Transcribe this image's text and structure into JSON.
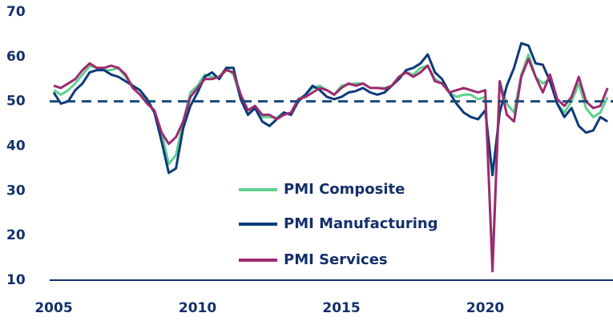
{
  "chart_data": {
    "type": "line",
    "x": [
      2005,
      2005.25,
      2005.5,
      2005.75,
      2006,
      2006.25,
      2006.5,
      2006.75,
      2007,
      2007.25,
      2007.5,
      2007.75,
      2008,
      2008.25,
      2008.5,
      2008.75,
      2009,
      2009.25,
      2009.5,
      2009.75,
      2010,
      2010.25,
      2010.5,
      2010.75,
      2011,
      2011.25,
      2011.5,
      2011.75,
      2012,
      2012.25,
      2012.5,
      2012.75,
      2013,
      2013.25,
      2013.5,
      2013.75,
      2014,
      2014.25,
      2014.5,
      2014.75,
      2015,
      2015.25,
      2015.5,
      2015.75,
      2016,
      2016.25,
      2016.5,
      2016.75,
      2017,
      2017.25,
      2017.5,
      2017.75,
      2018,
      2018.25,
      2018.5,
      2018.75,
      2019,
      2019.25,
      2019.5,
      2019.75,
      2020,
      2020.25,
      2020.5,
      2020.75,
      2021,
      2021.25,
      2021.5,
      2021.75,
      2022,
      2022.25,
      2022.5,
      2022.75,
      2023,
      2023.25,
      2023.5,
      2023.75,
      2024,
      2024.25
    ],
    "series": [
      {
        "name": "PMI Composite",
        "color": "#5fd08f",
        "values": [
          52.5,
          51.5,
          52.5,
          54,
          56,
          58,
          57.5,
          57,
          57,
          57.5,
          55.5,
          53.5,
          52.5,
          50,
          47.5,
          43,
          36,
          38,
          45.5,
          52,
          53.5,
          56,
          55.5,
          55.5,
          57.5,
          56,
          50.5,
          47,
          49,
          46.5,
          46.5,
          46.3,
          47.5,
          47,
          50.5,
          51.5,
          53,
          53.5,
          52.5,
          51.5,
          53.5,
          53.8,
          54,
          54,
          53,
          53,
          53,
          53.5,
          55.5,
          56.5,
          56,
          57.5,
          58,
          55,
          54,
          52,
          51,
          51.5,
          51.5,
          50.5,
          51,
          13.5,
          54.5,
          49.5,
          47.5,
          56,
          60.5,
          55.5,
          54,
          55,
          49.5,
          47.5,
          50,
          54,
          48.5,
          46.5,
          47.5,
          51
        ]
      },
      {
        "name": "PMI Manufacturing",
        "color": "#0d3a7a",
        "values": [
          52,
          49.5,
          50,
          52.5,
          54,
          56.5,
          57,
          57,
          56,
          55.5,
          54.5,
          53.5,
          52.5,
          50.5,
          47.5,
          41,
          34,
          35,
          44,
          49,
          52,
          55.5,
          56.5,
          55,
          57.5,
          57.5,
          50.5,
          47,
          48.5,
          45.5,
          44.5,
          46,
          47.5,
          47,
          50,
          51.5,
          53.5,
          52.5,
          51,
          50.5,
          51,
          52,
          52.3,
          53,
          52,
          51.5,
          52,
          53.5,
          55,
          57,
          57.5,
          58.5,
          60.5,
          56.5,
          55,
          52,
          49.5,
          47.5,
          46.5,
          46,
          48,
          33.5,
          47.5,
          53.5,
          57.5,
          63,
          62.5,
          58.5,
          58.2,
          54.5,
          49.5,
          46.5,
          48.5,
          44.5,
          43,
          43.5,
          46.5,
          45.5
        ]
      },
      {
        "name": "PMI Services",
        "color": "#9e2a6f",
        "values": [
          53.5,
          53,
          54,
          55,
          57,
          58.5,
          57.5,
          57.5,
          58,
          57.5,
          56,
          53,
          51.5,
          49.5,
          48,
          43,
          40.5,
          42,
          45.5,
          51,
          53,
          55,
          55,
          55.5,
          57,
          56.5,
          51.5,
          48,
          49,
          47,
          47,
          46,
          47,
          47.5,
          50.5,
          51,
          52,
          53,
          52.5,
          51.5,
          53,
          54,
          53.5,
          54,
          53,
          53,
          52.8,
          53.5,
          55.5,
          56.5,
          55.5,
          56.5,
          58,
          54.5,
          54,
          52,
          52.5,
          53,
          52.5,
          52,
          52.5,
          12,
          54.5,
          47,
          45.5,
          55.5,
          59.5,
          55.5,
          52,
          56,
          50.5,
          49,
          51,
          55.5,
          50,
          48.5,
          49,
          53
        ]
      }
    ],
    "hline": 50,
    "xlim": [
      2005,
      2024.3
    ],
    "ylim": [
      10,
      70
    ],
    "xticks": [
      2005,
      2010,
      2015,
      2020
    ],
    "yticks": [
      10,
      20,
      30,
      40,
      50,
      60,
      70
    ]
  }
}
